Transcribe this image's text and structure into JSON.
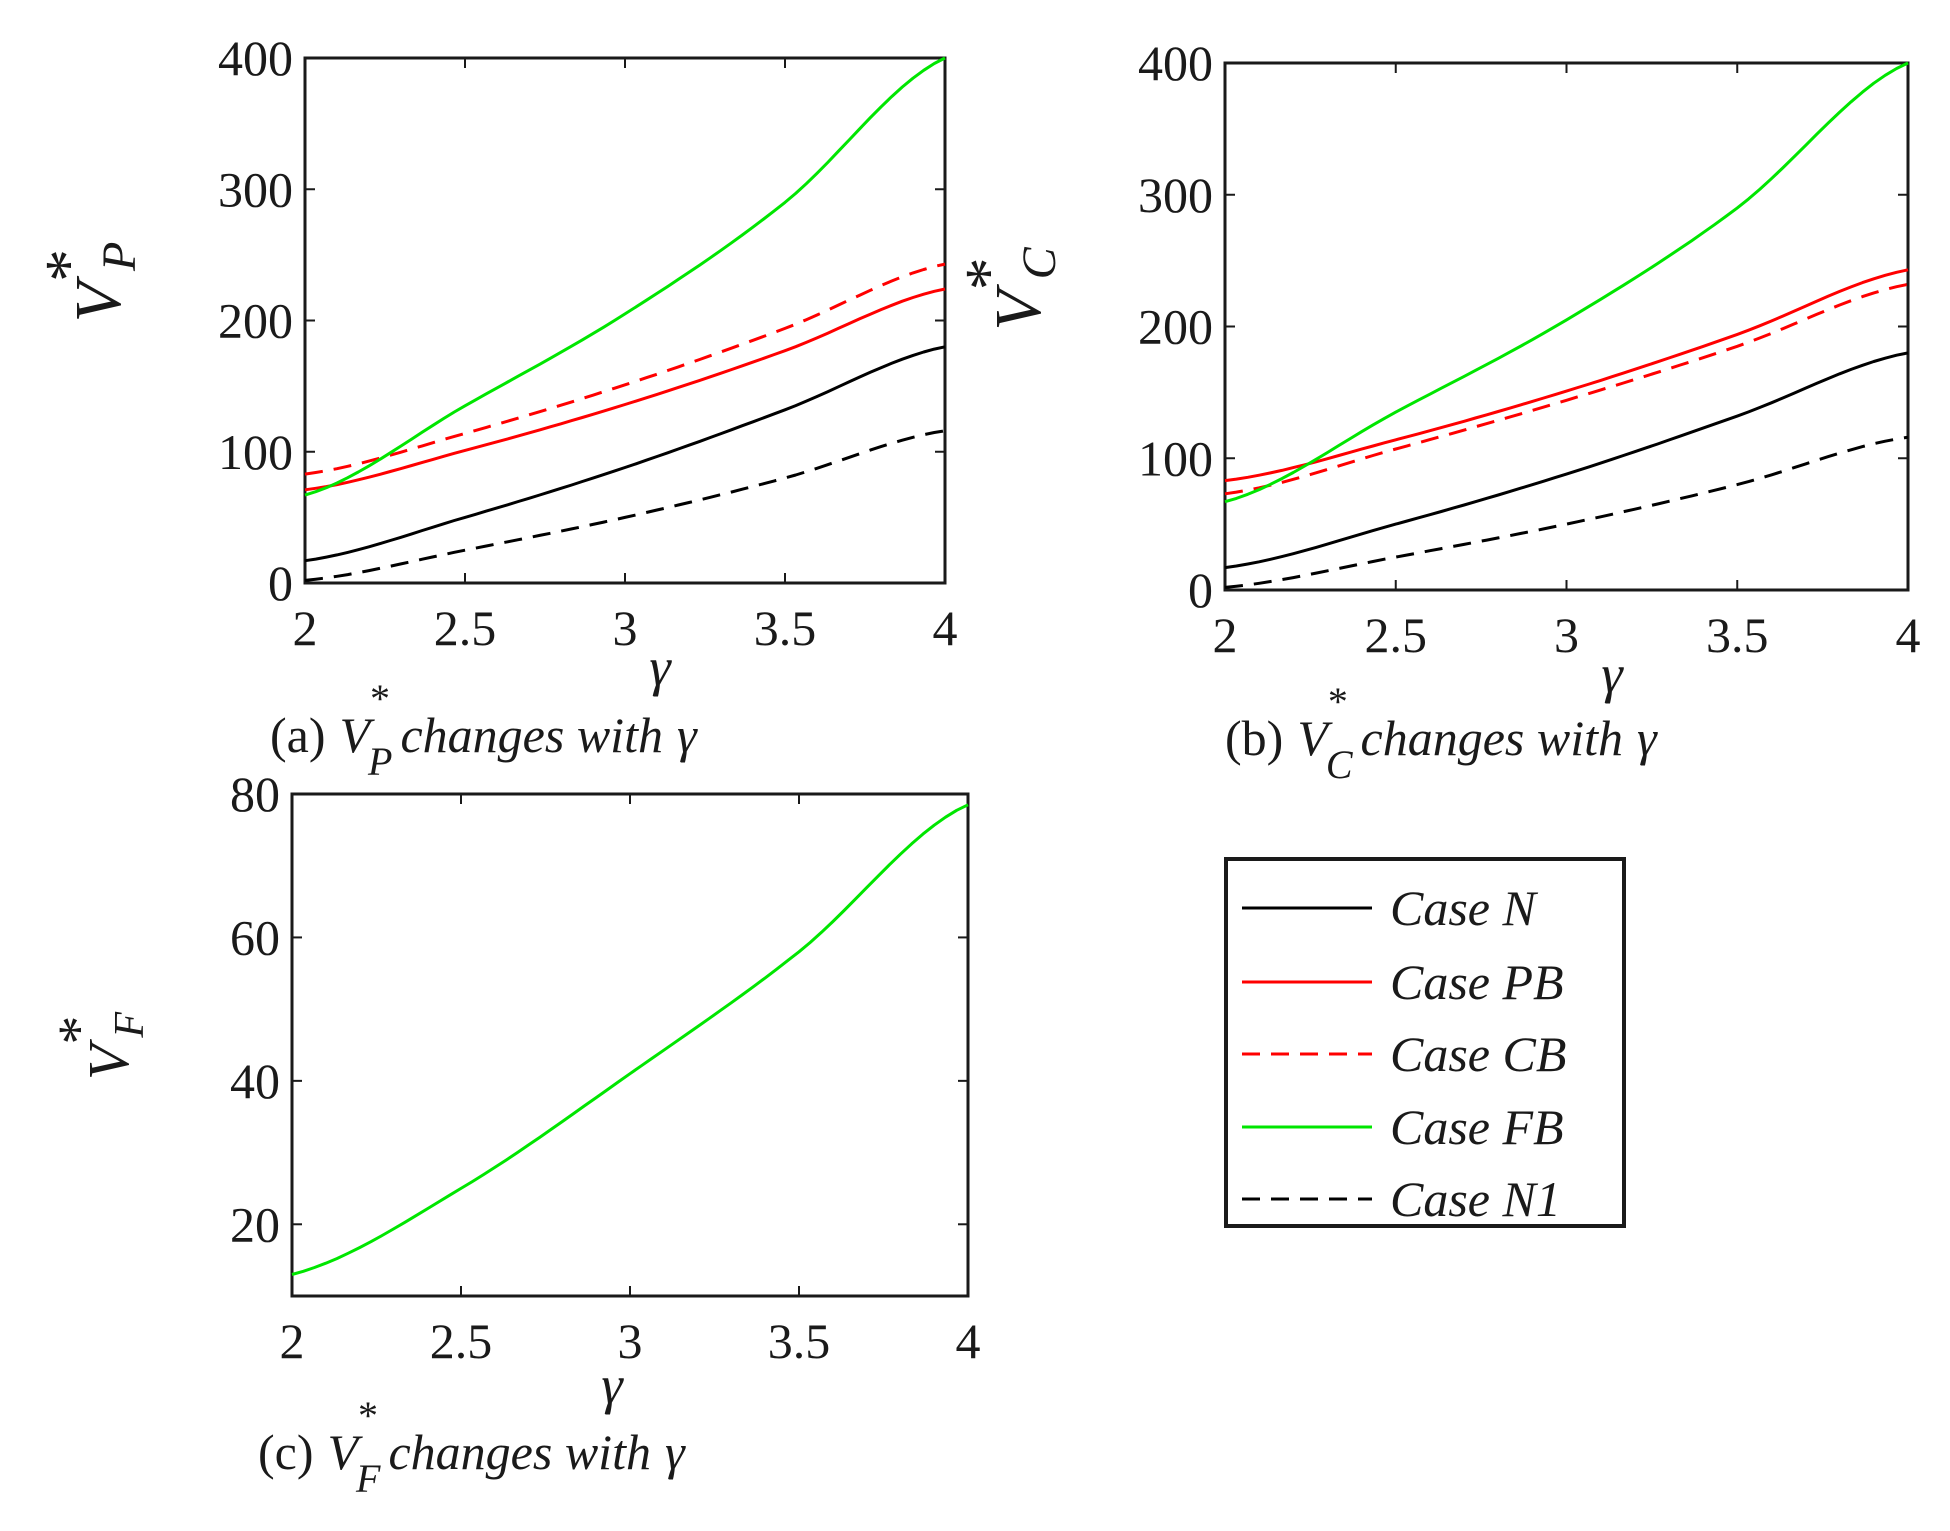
{
  "legend": {
    "entries": [
      {
        "label": "Case N",
        "color": "#000000",
        "dashed": false
      },
      {
        "label": "Case PB",
        "color": "#ff0000",
        "dashed": false
      },
      {
        "label": "Case CB",
        "color": "#ff0000",
        "dashed": true
      },
      {
        "label": "Case FB",
        "color": "#00e600",
        "dashed": false
      },
      {
        "label": "Case N1",
        "color": "#000000",
        "dashed": true
      }
    ]
  },
  "chart_data": [
    {
      "id": "a",
      "type": "line",
      "caption": {
        "prefix": "(a)",
        "var": "V",
        "sup": "*",
        "sub": "P",
        "rest": "changes with",
        "greek": "γ"
      },
      "xlabel": "γ",
      "ylabel": {
        "var": "V",
        "sup": "*",
        "sub": "P"
      },
      "xlim": [
        2,
        4
      ],
      "ylim": [
        0,
        400
      ],
      "xticks": [
        "2",
        "2.5",
        "3",
        "3.5",
        "4"
      ],
      "yticks": [
        "0",
        "100",
        "200",
        "300",
        "400"
      ],
      "x": [
        2,
        2.5,
        3,
        3.5,
        4
      ],
      "series": [
        {
          "name": "Case N",
          "color": "#000000",
          "dashed": false,
          "values": [
            17,
            50,
            88,
            132,
            180
          ]
        },
        {
          "name": "Case PB",
          "color": "#ff0000",
          "dashed": false,
          "values": [
            71,
            101,
            136,
            177,
            224
          ]
        },
        {
          "name": "Case CB",
          "color": "#ff0000",
          "dashed": true,
          "values": [
            83,
            114,
            151,
            194,
            243
          ]
        },
        {
          "name": "Case FB",
          "color": "#00e600",
          "dashed": false,
          "values": [
            67,
            135,
            205,
            290,
            400
          ]
        },
        {
          "name": "Case N1",
          "color": "#000000",
          "dashed": true,
          "values": [
            2,
            25,
            50,
            80,
            116
          ]
        }
      ]
    },
    {
      "id": "b",
      "type": "line",
      "caption": {
        "prefix": "(b)",
        "var": "V",
        "sup": "*",
        "sub": "C",
        "rest": "changes with",
        "greek": "γ"
      },
      "xlabel": "γ",
      "ylabel": {
        "var": "V",
        "sup": "*",
        "sub": "C"
      },
      "xlim": [
        2,
        4
      ],
      "ylim": [
        0,
        400
      ],
      "xticks": [
        "2",
        "2.5",
        "3",
        "3.5",
        "4"
      ],
      "yticks": [
        "0",
        "100",
        "200",
        "300",
        "400"
      ],
      "x": [
        2,
        2.5,
        3,
        3.5,
        4
      ],
      "series": [
        {
          "name": "Case N",
          "color": "#000000",
          "dashed": false,
          "values": [
            17,
            50,
            88,
            132,
            180
          ]
        },
        {
          "name": "Case PB",
          "color": "#ff0000",
          "dashed": false,
          "values": [
            83,
            114,
            151,
            194,
            243
          ]
        },
        {
          "name": "Case CB",
          "color": "#ff0000",
          "dashed": true,
          "values": [
            73,
            107,
            144,
            185,
            232
          ]
        },
        {
          "name": "Case FB",
          "color": "#00e600",
          "dashed": false,
          "values": [
            67,
            135,
            205,
            290,
            400
          ]
        },
        {
          "name": "Case N1",
          "color": "#000000",
          "dashed": true,
          "values": [
            2,
            25,
            50,
            80,
            116
          ]
        }
      ]
    },
    {
      "id": "c",
      "type": "line",
      "caption": {
        "prefix": "(c)",
        "var": "V",
        "sup": "*",
        "sub": "F",
        "rest": "changes with",
        "greek": "γ"
      },
      "xlabel": "γ",
      "ylabel": {
        "var": "V",
        "sup": "*",
        "sub": "F"
      },
      "xlim": [
        2,
        4
      ],
      "ylim": [
        10,
        80
      ],
      "xticks": [
        "2",
        "2.5",
        "3",
        "3.5",
        "4"
      ],
      "yticks": [
        "20",
        "40",
        "60",
        "80"
      ],
      "x": [
        2,
        2.5,
        3,
        3.5,
        4
      ],
      "series": [
        {
          "name": "Case FB",
          "color": "#00e600",
          "dashed": false,
          "values": [
            13,
            25,
            41,
            58,
            78.5
          ]
        }
      ]
    }
  ]
}
